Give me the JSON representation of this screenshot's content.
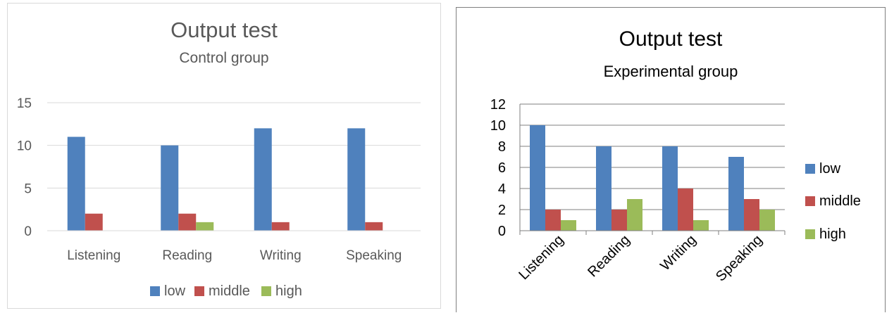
{
  "colors": {
    "low": "#4f81bd",
    "middle": "#c0504d",
    "high": "#9bbb59"
  },
  "chart_data": [
    {
      "type": "bar",
      "title": "Output test",
      "subtitle": "Control group",
      "categories": [
        "Listening",
        "Reading",
        "Writing",
        "Speaking"
      ],
      "series": [
        {
          "name": "low",
          "values": [
            11,
            10,
            12,
            12
          ]
        },
        {
          "name": "middle",
          "values": [
            2,
            2,
            1,
            1
          ]
        },
        {
          "name": "high",
          "values": [
            0,
            1,
            0,
            0
          ]
        }
      ],
      "ylim": [
        0,
        15
      ],
      "yticks": [
        "0",
        "5",
        "10",
        "15"
      ],
      "grid": true,
      "legend_position": "bottom"
    },
    {
      "type": "bar",
      "title": "Output test",
      "subtitle": "Experimental group",
      "categories": [
        "Listening",
        "Reading",
        "Writing",
        "Speaking"
      ],
      "series": [
        {
          "name": "low",
          "values": [
            10,
            8,
            8,
            7
          ]
        },
        {
          "name": "middle",
          "values": [
            2,
            2,
            4,
            3
          ]
        },
        {
          "name": "high",
          "values": [
            1,
            3,
            1,
            2
          ]
        }
      ],
      "ylim": [
        0,
        12
      ],
      "yticks": [
        "0",
        "2",
        "4",
        "6",
        "8",
        "10",
        "12"
      ],
      "grid": true,
      "legend_position": "right"
    }
  ]
}
